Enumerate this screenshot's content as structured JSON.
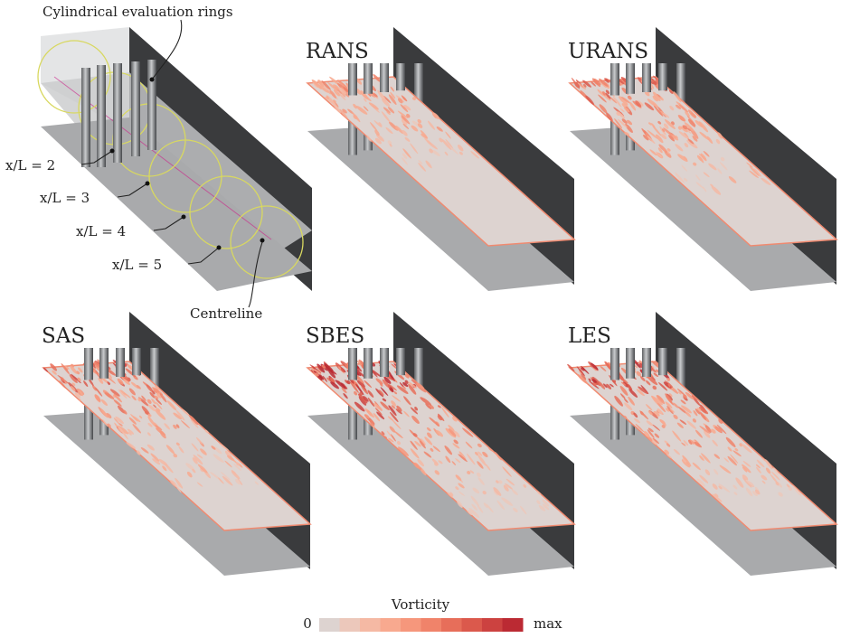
{
  "annotations": {
    "rings": "Cylindrical evaluation rings",
    "stations": [
      "x/L = 2",
      "x/L = 3",
      "x/L = 4",
      "x/L = 5"
    ],
    "centreline": "Centreline"
  },
  "panels": [
    {
      "title": "RANS"
    },
    {
      "title": "URANS"
    },
    {
      "title": "SAS"
    },
    {
      "title": "SBES"
    },
    {
      "title": "LES"
    }
  ],
  "colorbar": {
    "title": "Vorticity",
    "min_label": "0",
    "max_label": "max",
    "colors": [
      "#ddd3d0",
      "#ecc8bb",
      "#f5b9a4",
      "#f8a98f",
      "#f6977c",
      "#f0836a",
      "#e76e5a",
      "#db594c",
      "#cc4240",
      "#bb2a33"
    ]
  }
}
